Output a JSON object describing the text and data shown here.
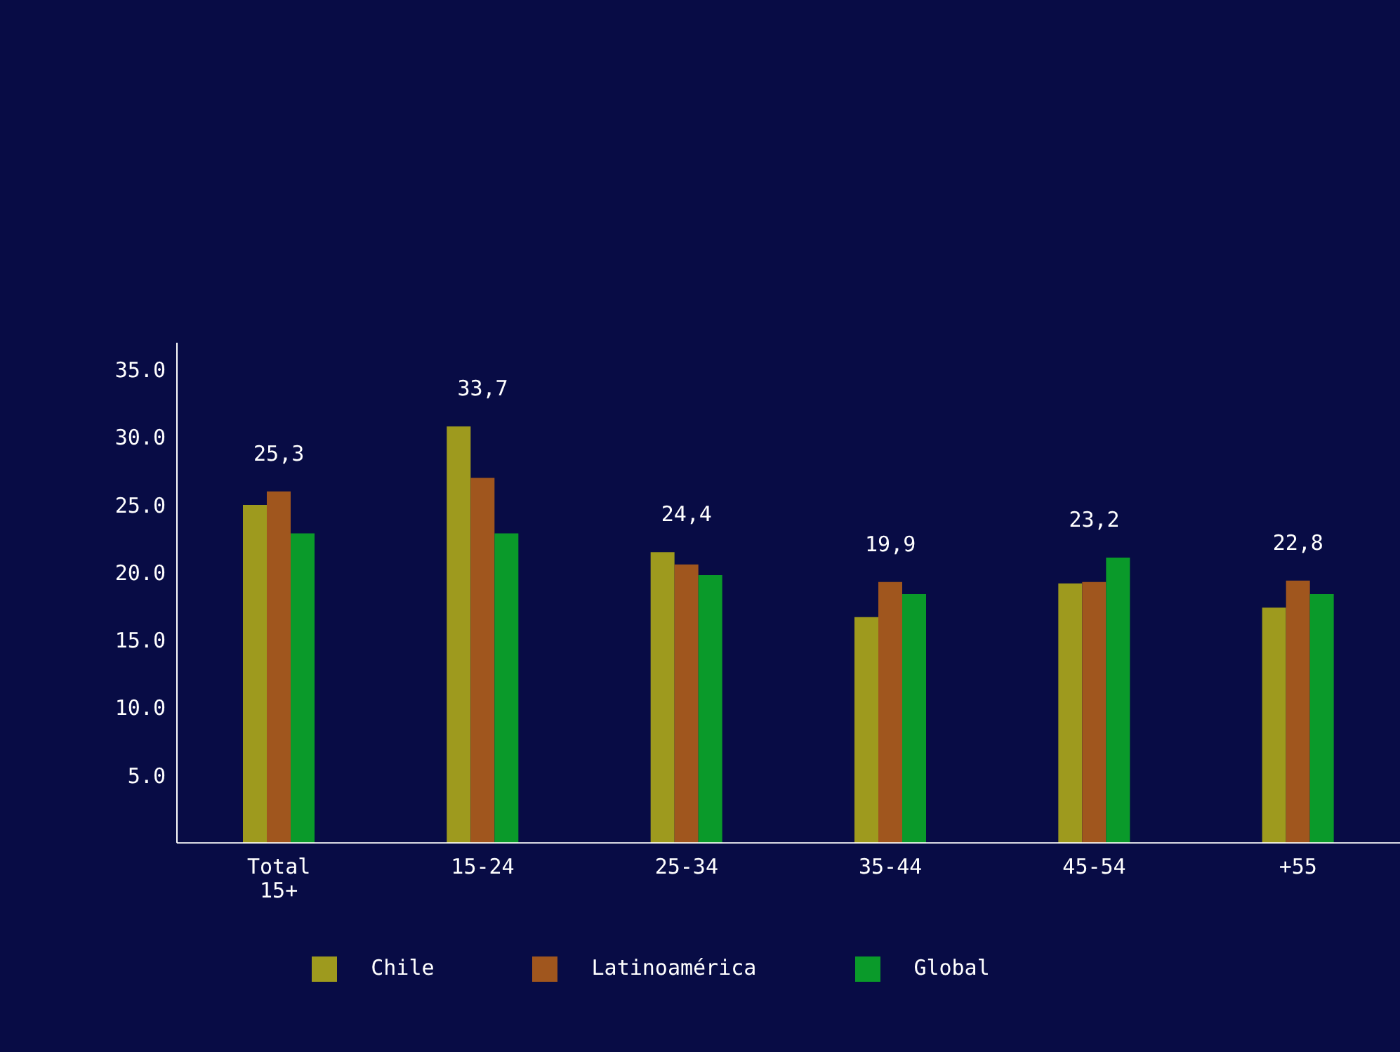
{
  "chart_data": {
    "type": "bar",
    "categories": [
      "Total 15+",
      "15-24",
      "25-34",
      "35-44",
      "45-54",
      "+55"
    ],
    "series": [
      {
        "name": "Chile",
        "color": "#9e9a1e",
        "values": [
          25,
          30.8,
          21.5,
          16.7,
          19.2,
          17.4
        ]
      },
      {
        "name": "Latinoamérica",
        "color": "#a0561e",
        "values": [
          26,
          27,
          20.6,
          19.3,
          19.3,
          19.4
        ]
      },
      {
        "name": "Global",
        "color": "#0a9a2a",
        "values": [
          22.9,
          22.9,
          19.8,
          18.4,
          21.1,
          18.4
        ]
      }
    ],
    "ylim": [
      0,
      37
    ],
    "yticks": [
      {
        "value": 5,
        "label": "5.0"
      },
      {
        "value": 10,
        "label": "10.0"
      },
      {
        "value": 15,
        "label": "15.0"
      },
      {
        "value": 20,
        "label": "20.0"
      },
      {
        "value": 25,
        "label": "25.0"
      },
      {
        "value": 30,
        "label": "30.0"
      },
      {
        "value": 35,
        "label": "35.0"
      }
    ],
    "annotations": [
      "25,3",
      "33,7",
      "24,4",
      "19,9",
      "23,2",
      "22,8"
    ],
    "legend": "bottom",
    "grid": false
  }
}
